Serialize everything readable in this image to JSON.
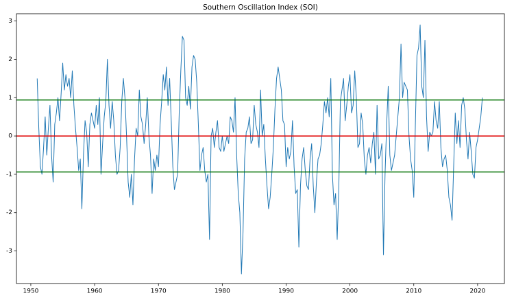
{
  "chart_data": {
    "type": "line",
    "title": "Southern Oscillation Index (SOI)",
    "xlim": [
      1947.75,
      2024.2
    ],
    "xticks": [
      1950,
      1960,
      1970,
      1980,
      1990,
      2000,
      2010,
      2020
    ],
    "ylim": [
      -3.85,
      3.19
    ],
    "yticks": [
      -3,
      -2,
      -1,
      0,
      1,
      2,
      3
    ],
    "hlines": [
      {
        "value": 0,
        "color": "#e00000"
      },
      {
        "value": 0.94,
        "color": "#007000"
      },
      {
        "value": -0.94,
        "color": "#007000"
      }
    ],
    "series": [
      {
        "name": "SOI",
        "color": "#1f77b4",
        "x": [
          1951,
          1951.25,
          1951.5,
          1951.75,
          1952,
          1952.25,
          1952.5,
          1952.75,
          1953,
          1953.25,
          1953.5,
          1953.75,
          1954,
          1954.25,
          1954.5,
          1954.75,
          1955,
          1955.25,
          1955.5,
          1955.75,
          1956,
          1956.25,
          1956.5,
          1956.75,
          1957,
          1957.25,
          1957.5,
          1957.75,
          1958,
          1958.25,
          1958.5,
          1958.75,
          1959,
          1959.25,
          1959.5,
          1959.75,
          1960,
          1960.25,
          1960.5,
          1960.75,
          1961,
          1961.25,
          1961.5,
          1961.75,
          1962,
          1962.25,
          1962.5,
          1962.75,
          1963,
          1963.25,
          1963.5,
          1963.75,
          1964,
          1964.25,
          1964.5,
          1964.75,
          1965,
          1965.25,
          1965.5,
          1965.75,
          1966,
          1966.25,
          1966.5,
          1966.75,
          1967,
          1967.25,
          1967.5,
          1967.75,
          1968,
          1968.25,
          1968.5,
          1968.75,
          1969,
          1969.25,
          1969.5,
          1969.75,
          1970,
          1970.25,
          1970.5,
          1970.75,
          1971,
          1971.25,
          1971.5,
          1971.75,
          1972,
          1972.25,
          1972.5,
          1972.75,
          1973,
          1973.25,
          1973.5,
          1973.75,
          1974,
          1974.25,
          1974.5,
          1974.75,
          1975,
          1975.25,
          1975.5,
          1975.75,
          1976,
          1976.25,
          1976.5,
          1976.75,
          1977,
          1977.25,
          1977.5,
          1977.75,
          1978,
          1978.25,
          1978.5,
          1978.75,
          1979,
          1979.25,
          1979.5,
          1979.75,
          1980,
          1980.25,
          1980.5,
          1980.75,
          1981,
          1981.25,
          1981.5,
          1981.75,
          1982,
          1982.25,
          1982.5,
          1982.75,
          1983,
          1983.25,
          1983.5,
          1983.75,
          1984,
          1984.25,
          1984.5,
          1984.75,
          1985,
          1985.25,
          1985.5,
          1985.75,
          1986,
          1986.25,
          1986.5,
          1986.75,
          1987,
          1987.25,
          1987.5,
          1987.75,
          1988,
          1988.25,
          1988.5,
          1988.75,
          1989,
          1989.25,
          1989.5,
          1989.75,
          1990,
          1990.25,
          1990.5,
          1990.75,
          1991,
          1991.25,
          1991.5,
          1991.75,
          1992,
          1992.25,
          1992.5,
          1992.75,
          1993,
          1993.25,
          1993.5,
          1993.75,
          1994,
          1994.25,
          1994.5,
          1994.75,
          1995,
          1995.25,
          1995.5,
          1995.75,
          1996,
          1996.25,
          1996.5,
          1996.75,
          1997,
          1997.25,
          1997.5,
          1997.75,
          1998,
          1998.25,
          1998.5,
          1998.75,
          1999,
          1999.25,
          1999.5,
          1999.75,
          2000,
          2000.25,
          2000.5,
          2000.75,
          2001,
          2001.25,
          2001.5,
          2001.75,
          2002,
          2002.25,
          2002.5,
          2002.75,
          2003,
          2003.25,
          2003.5,
          2003.75,
          2004,
          2004.25,
          2004.5,
          2004.75,
          2005,
          2005.25,
          2005.5,
          2005.75,
          2006,
          2006.25,
          2006.5,
          2006.75,
          2007,
          2007.25,
          2007.5,
          2007.75,
          2008,
          2008.25,
          2008.5,
          2008.75,
          2009,
          2009.25,
          2009.5,
          2009.75,
          2010,
          2010.25,
          2010.5,
          2010.75,
          2011,
          2011.25,
          2011.5,
          2011.75,
          2012,
          2012.25,
          2012.5,
          2012.75,
          2013,
          2013.25,
          2013.5,
          2013.75,
          2014,
          2014.25,
          2014.5,
          2014.75,
          2015,
          2015.25,
          2015.5,
          2015.75,
          2016,
          2016.25,
          2016.5,
          2016.75,
          2017,
          2017.25,
          2017.5,
          2017.75,
          2018,
          2018.25,
          2018.5,
          2018.75,
          2019,
          2019.25,
          2019.5,
          2019.75,
          2020,
          2020.25,
          2020.5,
          2020.75
        ],
        "values": [
          1.5,
          0.2,
          -0.8,
          -1.0,
          -0.3,
          0.5,
          -0.5,
          0.2,
          0.8,
          -0.5,
          -1.2,
          0.3,
          0.6,
          1.0,
          0.4,
          1.1,
          1.9,
          1.2,
          1.6,
          1.3,
          1.5,
          1.0,
          1.7,
          0.8,
          0.2,
          -0.3,
          -0.9,
          -0.6,
          -1.9,
          -0.5,
          0.4,
          0.1,
          -0.8,
          0.3,
          0.6,
          0.4,
          0.2,
          0.8,
          0.3,
          1.0,
          -1.0,
          -0.2,
          0.5,
          0.9,
          2.0,
          0.8,
          0.2,
          0.9,
          0.4,
          -0.5,
          -1.0,
          -0.9,
          -0.3,
          0.9,
          1.5,
          1.0,
          0.0,
          -1.2,
          -1.6,
          -1.0,
          -1.8,
          -0.6,
          0.2,
          0.0,
          1.2,
          0.5,
          0.3,
          -0.2,
          0.3,
          1.0,
          0.0,
          -0.5,
          -1.5,
          -0.6,
          -0.9,
          -0.5,
          -0.8,
          0.3,
          0.9,
          1.6,
          1.2,
          1.8,
          0.8,
          1.5,
          0.4,
          -0.8,
          -1.4,
          -1.2,
          -1.0,
          0.6,
          1.7,
          2.6,
          2.5,
          1.0,
          0.8,
          1.3,
          0.7,
          1.8,
          2.1,
          2.0,
          1.4,
          0.3,
          -0.9,
          -0.5,
          -0.3,
          -0.9,
          -1.2,
          -1.0,
          -2.7,
          0.0,
          0.2,
          -0.3,
          0.1,
          0.4,
          -0.3,
          -0.4,
          0.0,
          -0.4,
          -0.2,
          0.0,
          -0.2,
          0.5,
          0.4,
          0.1,
          1.0,
          -0.5,
          -1.5,
          -2.0,
          -3.6,
          -2.5,
          -0.6,
          0.1,
          0.2,
          0.5,
          -0.2,
          -0.1,
          0.8,
          0.3,
          0.1,
          -0.3,
          1.2,
          0.0,
          0.3,
          -0.6,
          -1.3,
          -1.9,
          -1.6,
          -1.0,
          -0.3,
          0.7,
          1.5,
          1.8,
          1.5,
          1.2,
          0.4,
          0.3,
          -0.8,
          -0.3,
          -0.6,
          -0.4,
          0.4,
          -0.8,
          -1.5,
          -1.4,
          -2.9,
          -1.3,
          -0.6,
          -0.3,
          -0.9,
          -1.3,
          -1.4,
          -0.6,
          -0.2,
          -1.3,
          -2.0,
          -1.2,
          -0.6,
          -0.5,
          -0.2,
          0.3,
          0.9,
          0.6,
          1.0,
          0.5,
          1.5,
          -1.0,
          -1.8,
          -1.5,
          -2.7,
          -1.4,
          0.9,
          1.2,
          1.5,
          0.4,
          0.8,
          1.3,
          1.6,
          0.6,
          0.8,
          1.7,
          1.0,
          -0.3,
          -0.2,
          0.6,
          0.3,
          -0.6,
          -1.0,
          -0.5,
          -0.3,
          -0.7,
          -0.2,
          0.1,
          -1.0,
          0.8,
          -0.6,
          -0.5,
          -0.2,
          -3.1,
          -1.0,
          0.3,
          1.3,
          -0.5,
          -0.9,
          -0.7,
          -0.5,
          0.0,
          0.5,
          1.0,
          2.4,
          1.0,
          1.4,
          1.3,
          1.2,
          0.0,
          -0.6,
          -0.9,
          -1.6,
          0.3,
          2.1,
          2.3,
          2.9,
          1.3,
          1.0,
          2.5,
          0.5,
          -0.4,
          0.1,
          0.0,
          0.1,
          0.9,
          0.4,
          0.2,
          0.9,
          -0.3,
          -0.8,
          -0.6,
          -0.5,
          -0.9,
          -1.6,
          -1.8,
          -2.2,
          -0.8,
          0.6,
          -0.2,
          0.4,
          -0.3,
          0.8,
          1.0,
          0.7,
          -0.1,
          -0.6,
          0.1,
          -0.4,
          -1.0,
          -1.1,
          -0.3,
          -0.1,
          0.2,
          0.5,
          1.0
        ]
      }
    ]
  }
}
